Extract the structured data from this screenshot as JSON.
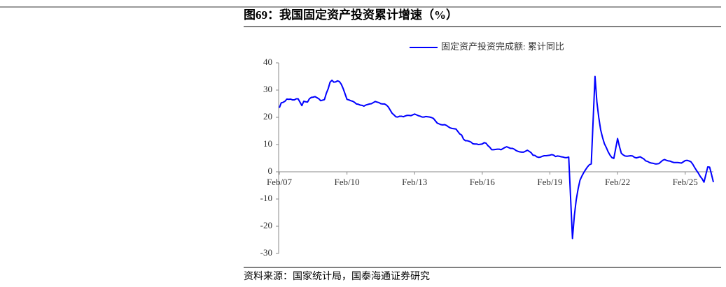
{
  "title": "图69：我国固定资产投资累计增速（%）",
  "source": "资料来源：国家统计局，国泰海通证券研究",
  "chart_data": {
    "type": "line",
    "series": [
      {
        "name": "固定资产投资完成额: 累计同比",
        "color": "#0000ff",
        "values": [
          23.5,
          25.3,
          25.5,
          25.9,
          26.7,
          26.6,
          26.7,
          26.4,
          26.4,
          26.8,
          26.8,
          24.3,
          25.9,
          25.7,
          25.6,
          26.8,
          27.3,
          27.4,
          27.6,
          27.2,
          26.8,
          26.1,
          26.5,
          28.8,
          30.5,
          32.9,
          33.6,
          32.9,
          33.0,
          33.4,
          33.1,
          32.1,
          30.5,
          26.6,
          26.4,
          26.1,
          25.9,
          25.5,
          24.9,
          24.8,
          24.5,
          24.4,
          24.1,
          24.5,
          24.9,
          25.0,
          25.4,
          25.8,
          25.6,
          25.4,
          25.0,
          24.9,
          24.9,
          24.5,
          23.8,
          21.5,
          20.9,
          20.2,
          20.1,
          20.4,
          20.4,
          20.2,
          20.5,
          20.7,
          20.7,
          20.6,
          21.2,
          20.9,
          20.6,
          20.4,
          20.1,
          20.1,
          20.3,
          20.2,
          20.1,
          19.9,
          19.6,
          17.9,
          17.6,
          17.3,
          17.2,
          17.3,
          17.0,
          16.5,
          16.1,
          15.9,
          15.8,
          15.7,
          13.9,
          13.5,
          12.0,
          11.4,
          11.4,
          11.2,
          10.9,
          10.3,
          10.2,
          10.2,
          10.0,
          10.2,
          10.7,
          10.5,
          9.6,
          9.0,
          8.1,
          8.1,
          8.2,
          8.3,
          8.3,
          8.1,
          8.9,
          9.2,
          8.9,
          8.6,
          8.6,
          8.3,
          7.8,
          7.5,
          7.3,
          7.2,
          7.2,
          7.9,
          7.5,
          7.0,
          6.1,
          6.0,
          5.5,
          5.3,
          5.4,
          5.7,
          5.9,
          5.9,
          6.1,
          6.3,
          6.1,
          5.6,
          5.8,
          5.7,
          5.5,
          5.4,
          5.2,
          5.2,
          5.4,
          -24.5,
          -16.1,
          -10.3,
          -6.3,
          -3.1,
          -1.6,
          -0.3,
          0.8,
          1.8,
          2.6,
          2.9,
          35.0,
          25.6,
          19.9,
          15.4,
          12.6,
          10.3,
          8.9,
          7.3,
          6.1,
          5.2,
          4.9,
          12.2,
          9.3,
          6.8,
          6.2,
          5.8,
          5.7,
          5.8,
          5.9,
          5.8,
          5.3,
          5.1,
          5.5,
          5.1,
          4.7,
          4.0,
          3.8,
          3.4,
          3.2,
          3.1,
          2.9,
          2.9,
          3.0,
          4.2,
          4.5,
          4.2,
          4.0,
          3.9,
          3.6,
          3.4,
          3.4,
          3.4,
          3.3,
          3.2,
          4.1,
          4.2,
          4.0,
          3.7,
          2.8,
          1.6,
          0.5,
          -0.5,
          -1.7,
          -2.6,
          -3.8,
          1.8,
          1.7,
          -1.0,
          -3.8
        ]
      }
    ],
    "x": [
      "2007-02",
      "2007-03",
      "2007-04",
      "2007-05",
      "2007-06",
      "2007-07",
      "2007-08",
      "2007-09",
      "2007-10",
      "2007-11",
      "2007-12",
      "2008-02",
      "2008-03",
      "2008-04",
      "2008-05",
      "2008-06",
      "2008-07",
      "2008-08",
      "2008-09",
      "2008-10",
      "2008-11",
      "2008-12",
      "2009-02",
      "2009-03",
      "2009-04",
      "2009-05",
      "2009-06",
      "2009-07",
      "2009-08",
      "2009-09",
      "2009-10",
      "2009-11",
      "2009-12",
      "2010-02",
      "2010-03",
      "2010-04",
      "2010-05",
      "2010-06",
      "2010-07",
      "2010-08",
      "2010-09",
      "2010-10",
      "2010-11",
      "2010-12",
      "2011-02",
      "2011-03",
      "2011-04",
      "2011-05",
      "2011-06",
      "2011-07",
      "2011-08",
      "2011-09",
      "2011-10",
      "2011-11",
      "2011-12",
      "2012-02",
      "2012-03",
      "2012-04",
      "2012-05",
      "2012-06",
      "2012-07",
      "2012-08",
      "2012-09",
      "2012-10",
      "2012-11",
      "2012-12",
      "2013-02",
      "2013-03",
      "2013-04",
      "2013-05",
      "2013-06",
      "2013-07",
      "2013-08",
      "2013-09",
      "2013-10",
      "2013-11",
      "2013-12",
      "2014-02",
      "2014-03",
      "2014-04",
      "2014-05",
      "2014-06",
      "2014-07",
      "2014-08",
      "2014-09",
      "2014-10",
      "2014-11",
      "2014-12",
      "2015-02",
      "2015-03",
      "2015-04",
      "2015-05",
      "2015-06",
      "2015-07",
      "2015-08",
      "2015-09",
      "2015-10",
      "2015-11",
      "2015-12",
      "2016-02",
      "2016-03",
      "2016-04",
      "2016-05",
      "2016-06",
      "2016-07",
      "2016-08",
      "2016-09",
      "2016-10",
      "2016-11",
      "2016-12",
      "2017-02",
      "2017-03",
      "2017-04",
      "2017-05",
      "2017-06",
      "2017-07",
      "2017-08",
      "2017-09",
      "2017-10",
      "2017-11",
      "2017-12",
      "2018-02",
      "2018-03",
      "2018-04",
      "2018-05",
      "2018-06",
      "2018-07",
      "2018-08",
      "2018-09",
      "2018-10",
      "2018-11",
      "2018-12",
      "2019-02",
      "2019-03",
      "2019-04",
      "2019-05",
      "2019-06",
      "2019-07",
      "2019-08",
      "2019-09",
      "2019-10",
      "2019-11",
      "2019-12",
      "2020-02",
      "2020-03",
      "2020-04",
      "2020-05",
      "2020-06",
      "2020-07",
      "2020-08",
      "2020-09",
      "2020-10",
      "2020-11",
      "2020-12",
      "2021-02",
      "2021-03",
      "2021-04",
      "2021-05",
      "2021-06",
      "2021-07",
      "2021-08",
      "2021-09",
      "2021-10",
      "2021-11",
      "2021-12",
      "2022-02",
      "2022-03",
      "2022-04",
      "2022-05",
      "2022-06",
      "2022-07",
      "2022-08",
      "2022-09",
      "2022-10",
      "2022-11",
      "2022-12",
      "2023-02",
      "2023-03",
      "2023-04",
      "2023-05",
      "2023-06",
      "2023-07",
      "2023-08",
      "2023-09",
      "2023-10",
      "2023-11",
      "2023-12",
      "2024-02",
      "2024-03",
      "2024-04",
      "2024-05",
      "2024-06",
      "2024-07",
      "2024-08",
      "2024-09",
      "2024-10",
      "2024-11",
      "2024-12",
      "2025-02",
      "2025-03",
      "2025-04",
      "2025-05",
      "2025-06",
      "2025-07",
      "2025-08",
      "2025-09",
      "2025-10",
      "2025-11",
      "2025-12",
      "2026-02",
      "2026-03",
      "2026-04",
      "2026-05"
    ],
    "xlim": [
      "2007-02",
      "2026-05"
    ],
    "xticks": [
      {
        "value": "2007-02",
        "label": "Feb/07"
      },
      {
        "value": "2010-02",
        "label": "Feb/10"
      },
      {
        "value": "2013-02",
        "label": "Feb/13"
      },
      {
        "value": "2016-02",
        "label": "Feb/16"
      },
      {
        "value": "2019-02",
        "label": "Feb/19"
      },
      {
        "value": "2022-02",
        "label": "Feb/22"
      },
      {
        "value": "2025-02",
        "label": "Feb/25"
      }
    ],
    "ylim": [
      -30,
      40
    ],
    "yticks": [
      -30,
      -20,
      -10,
      0,
      10,
      20,
      30,
      40
    ],
    "legend": "top"
  }
}
